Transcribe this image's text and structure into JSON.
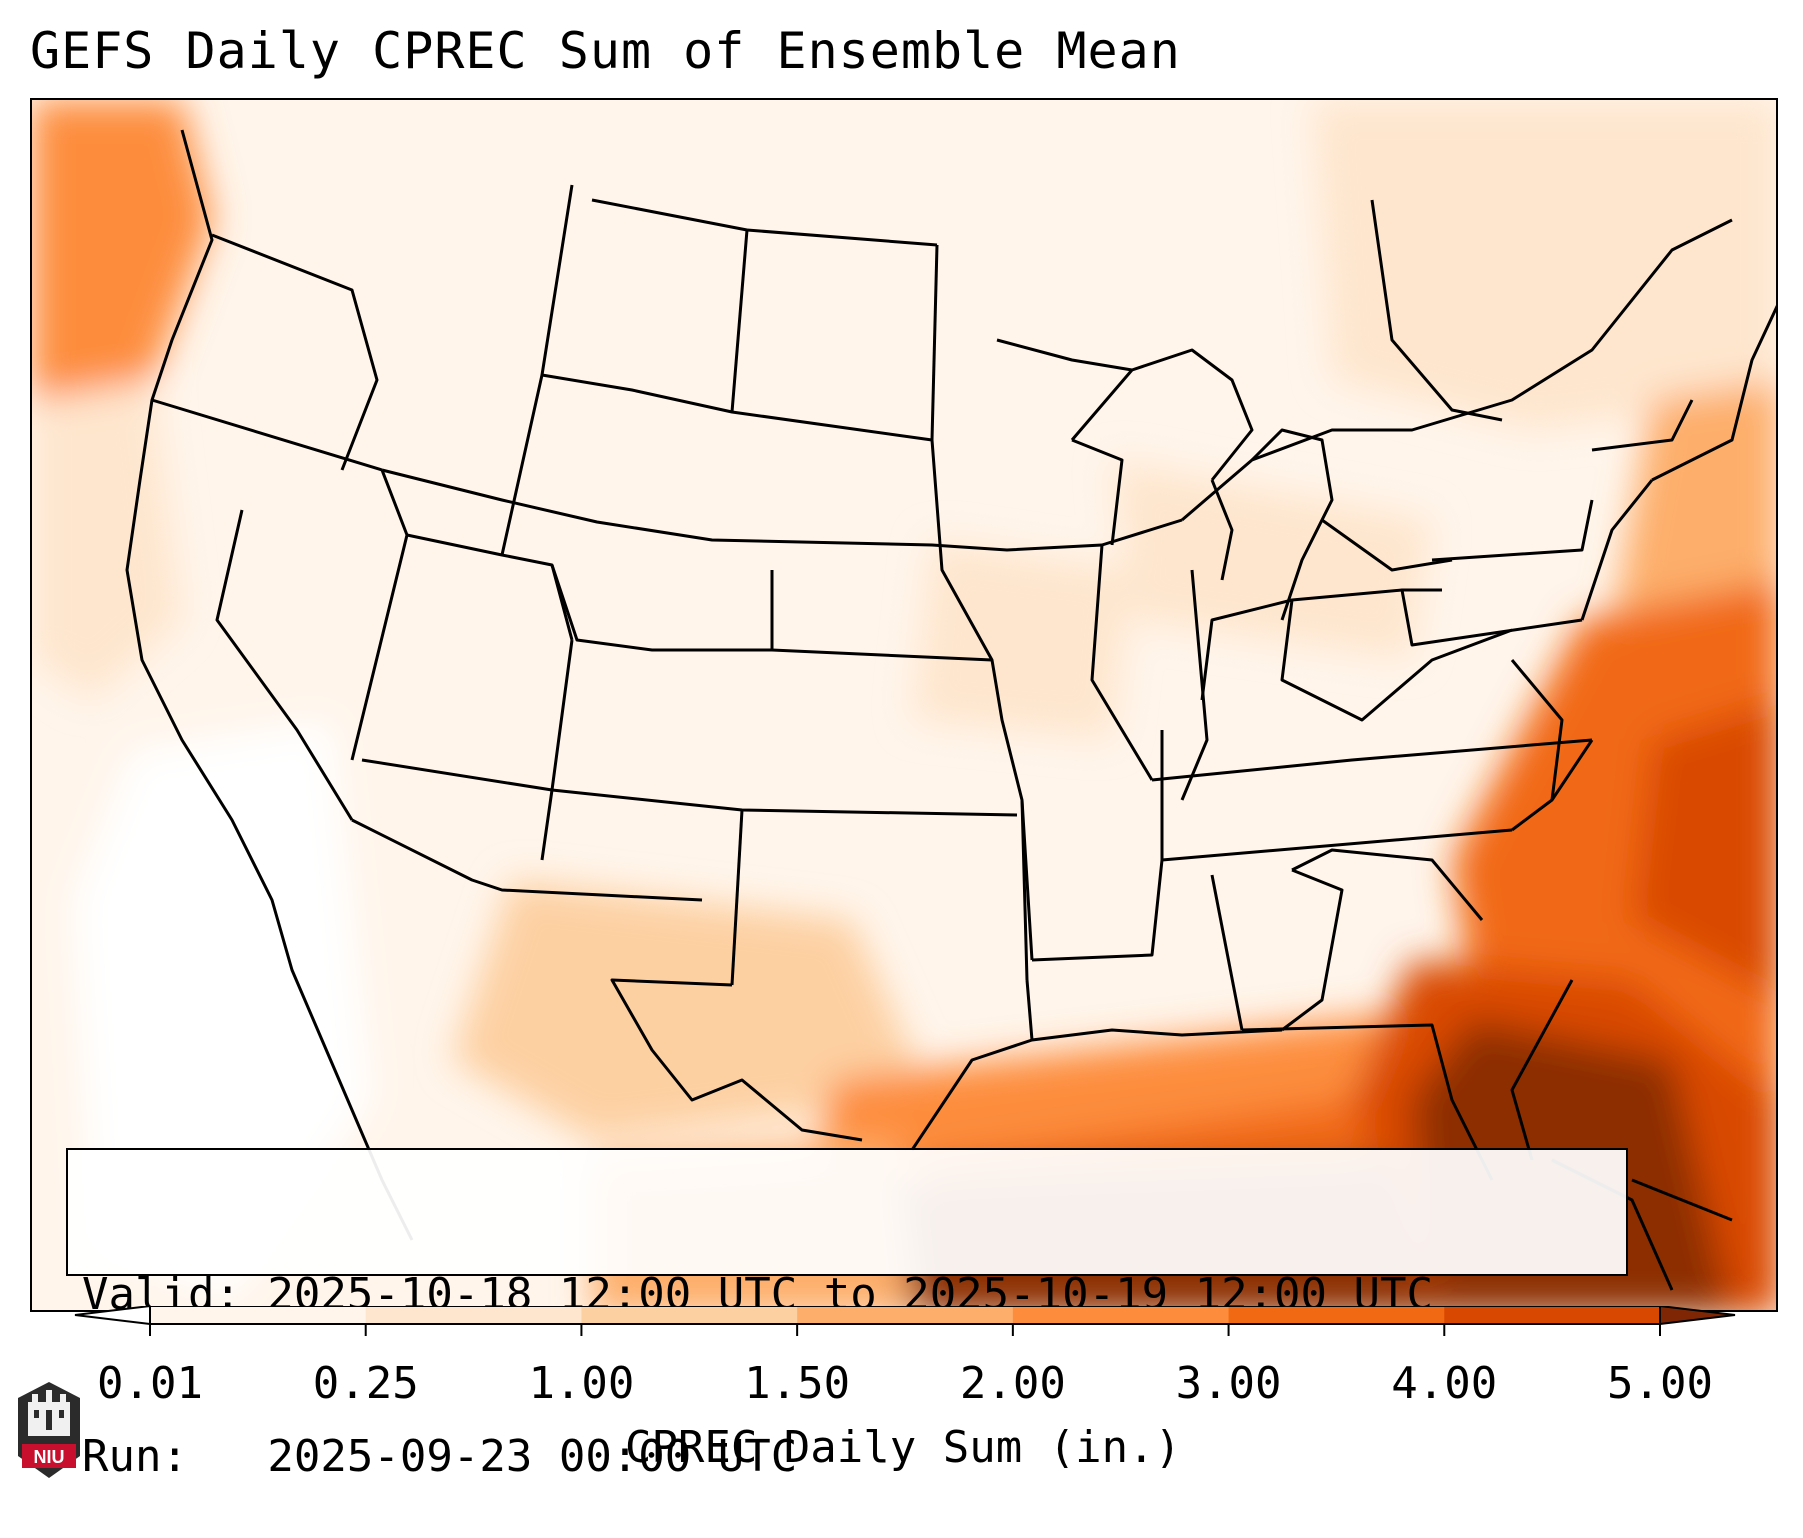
{
  "title": "GEFS Daily CPREC Sum of Ensemble Mean",
  "info": {
    "valid_line": "Valid: 2025-10-18 12:00 UTC to 2025-10-19 12:00 UTC",
    "run_line": "Run:   2025-09-23 00:00 UTC"
  },
  "colorbar": {
    "label": "CPREC Daily Sum (in.)",
    "ticks": [
      "0.01",
      "0.25",
      "1.00",
      "1.50",
      "2.00",
      "3.00",
      "4.00",
      "5.00"
    ],
    "colors": [
      "#fff5eb",
      "#fee6ce",
      "#fdd0a2",
      "#fdae6b",
      "#fd8d3c",
      "#f16913",
      "#d94801",
      "#8c2d04"
    ],
    "under_color": "#ffffff",
    "over_color": "#7f2704"
  },
  "logo": {
    "text": "NIU",
    "icon": "niu-building-logo-icon"
  }
}
